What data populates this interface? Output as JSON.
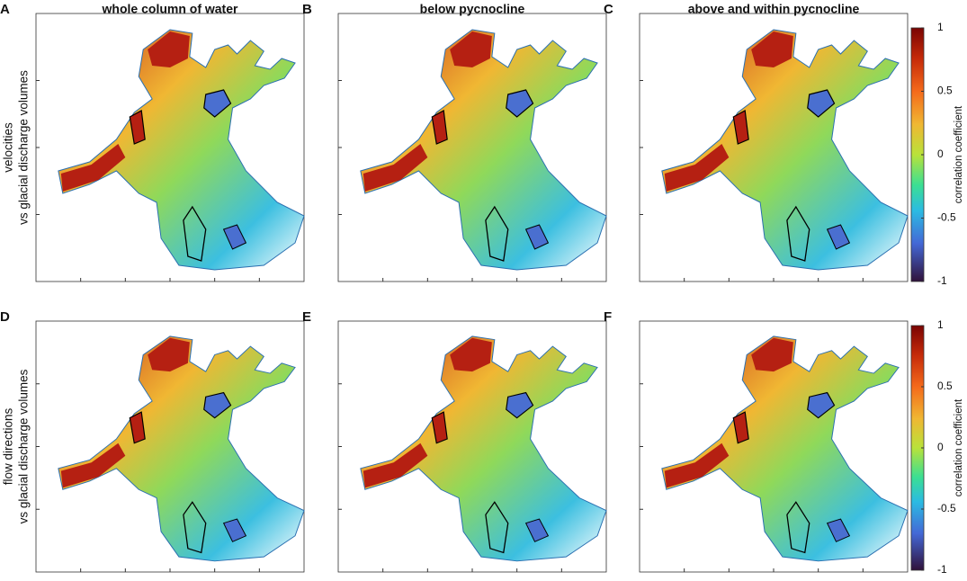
{
  "panels": [
    {
      "letter": "A",
      "title": "whole column of water"
    },
    {
      "letter": "B",
      "title": "below pycnocline"
    },
    {
      "letter": "C",
      "title": "above and within pycnocline"
    },
    {
      "letter": "D"
    },
    {
      "letter": "E"
    },
    {
      "letter": "F"
    }
  ],
  "row_labels": [
    [
      "velocities",
      "vs glacial discharge volumes"
    ],
    [
      "flow directions",
      "vs glacial discharge volumes"
    ]
  ],
  "colorbars": [
    {
      "label": "correlation  coefficient",
      "lim": [
        -1,
        1
      ],
      "ticks": [
        1,
        0.5,
        0,
        -0.5,
        -1
      ]
    },
    {
      "label": "correlation  coefficient",
      "lim": [
        -1,
        1
      ],
      "ticks": [
        1,
        0.5,
        0,
        -0.5,
        -1
      ]
    }
  ]
}
